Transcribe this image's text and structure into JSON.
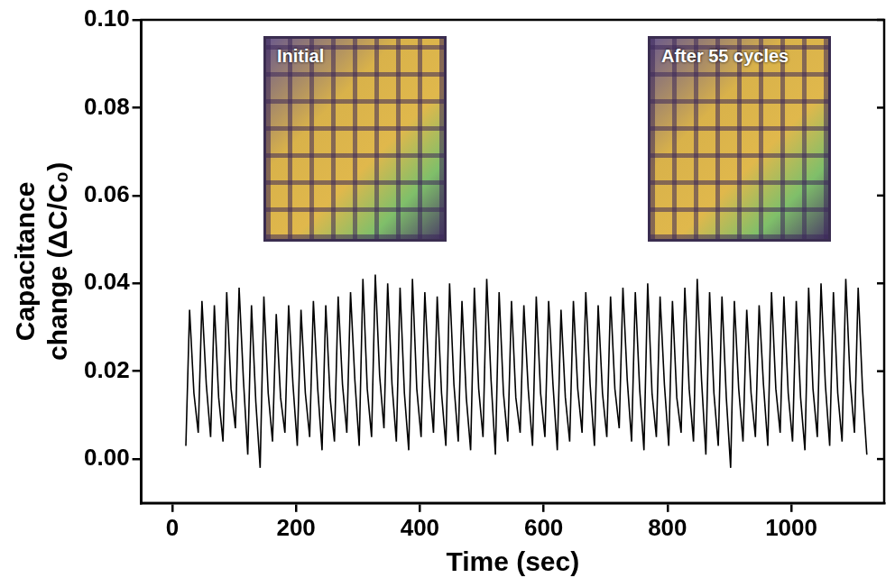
{
  "chart_data": {
    "type": "line",
    "x_label": "Time (sec)",
    "y_label": "Capacitance change (ΔC/C₀)",
    "annotations": [
      {
        "text": "Initial"
      },
      {
        "text": "After 55 cycles"
      }
    ],
    "xlim": [
      -50,
      1150
    ],
    "xticks": [
      0,
      200,
      400,
      600,
      800,
      1000
    ],
    "ylim": [
      -0.01,
      0.1
    ],
    "yticks": [
      {
        "value": 0,
        "label": "0.00"
      },
      {
        "value": 0.02,
        "label": "0.02"
      },
      {
        "value": 0.04,
        "label": "0.04"
      },
      {
        "value": 0.06,
        "label": "0.06"
      },
      {
        "value": 0.08,
        "label": "0.08"
      },
      {
        "value": 0.1,
        "label": "0.10"
      }
    ],
    "grid": false,
    "series": [
      {
        "color": "#000000",
        "x": [
          22,
          28,
          35,
          42,
          48,
          55,
          62,
          68,
          75,
          82,
          88,
          95,
          102,
          108,
          115,
          122,
          128,
          135,
          142,
          148,
          155,
          162,
          168,
          175,
          182,
          188,
          195,
          202,
          208,
          215,
          222,
          228,
          235,
          242,
          248,
          255,
          262,
          268,
          275,
          282,
          288,
          295,
          302,
          308,
          315,
          322,
          328,
          335,
          342,
          348,
          355,
          362,
          368,
          375,
          382,
          388,
          395,
          402,
          408,
          415,
          422,
          428,
          435,
          442,
          448,
          455,
          462,
          468,
          475,
          482,
          488,
          495,
          502,
          508,
          515,
          522,
          528,
          535,
          542,
          548,
          555,
          562,
          568,
          575,
          582,
          588,
          595,
          602,
          608,
          615,
          622,
          628,
          635,
          642,
          648,
          655,
          662,
          668,
          675,
          682,
          688,
          695,
          702,
          708,
          715,
          722,
          728,
          735,
          742,
          748,
          755,
          762,
          768,
          775,
          782,
          788,
          795,
          802,
          808,
          815,
          822,
          828,
          835,
          842,
          848,
          855,
          862,
          868,
          875,
          882,
          888,
          895,
          902,
          908,
          915,
          922,
          928,
          935,
          942,
          948,
          955,
          962,
          968,
          975,
          982,
          988,
          995,
          1002,
          1008,
          1015,
          1022,
          1028,
          1035,
          1042,
          1048,
          1055,
          1062,
          1068,
          1075,
          1082,
          1088,
          1095,
          1102,
          1108,
          1115,
          1122
        ],
        "values": [
          0.003,
          0.034,
          0.015,
          0.006,
          0.036,
          0.017,
          0.005,
          0.035,
          0.014,
          0.004,
          0.038,
          0.016,
          0.007,
          0.039,
          0.018,
          0.001,
          0.035,
          0.013,
          -0.002,
          0.037,
          0.015,
          0.004,
          0.033,
          0.014,
          0.006,
          0.035,
          0.017,
          0.003,
          0.034,
          0.015,
          0.005,
          0.036,
          0.016,
          0.002,
          0.035,
          0.014,
          0.004,
          0.037,
          0.017,
          0.006,
          0.038,
          0.018,
          0.003,
          0.041,
          0.016,
          0.005,
          0.042,
          0.019,
          0.007,
          0.04,
          0.017,
          0.004,
          0.039,
          0.015,
          0.002,
          0.041,
          0.016,
          0.005,
          0.038,
          0.018,
          0.006,
          0.037,
          0.015,
          0.003,
          0.04,
          0.017,
          0.004,
          0.036,
          0.014,
          0.002,
          0.039,
          0.016,
          0.005,
          0.041,
          0.018,
          0.001,
          0.038,
          0.015,
          0.004,
          0.036,
          0.014,
          0.006,
          0.035,
          0.016,
          0.003,
          0.037,
          0.015,
          0.005,
          0.036,
          0.017,
          0.002,
          0.034,
          0.014,
          0.004,
          0.036,
          0.016,
          0.006,
          0.038,
          0.017,
          0.003,
          0.035,
          0.015,
          0.005,
          0.037,
          0.016,
          0.007,
          0.039,
          0.018,
          0.004,
          0.038,
          0.016,
          0.002,
          0.04,
          0.015,
          0.005,
          0.037,
          0.017,
          0.003,
          0.036,
          0.014,
          0.006,
          0.039,
          0.016,
          0.004,
          0.041,
          0.018,
          0.001,
          0.038,
          0.015,
          0.003,
          0.037,
          0.014,
          -0.002,
          0.036,
          0.016,
          0.004,
          0.034,
          0.015,
          0.005,
          0.035,
          0.017,
          0.003,
          0.038,
          0.016,
          0.006,
          0.037,
          0.015,
          0.004,
          0.036,
          0.014,
          0.002,
          0.039,
          0.016,
          0.005,
          0.04,
          0.017,
          0.003,
          0.038,
          0.015,
          0.004,
          0.041,
          0.018,
          0.006,
          0.039,
          0.016,
          0.001
        ]
      }
    ]
  }
}
